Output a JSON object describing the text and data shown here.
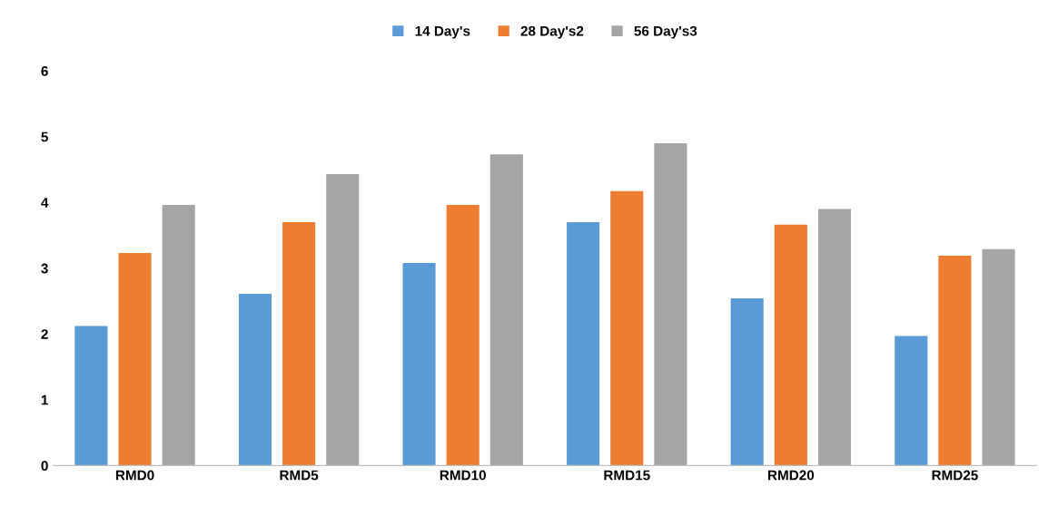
{
  "chart_data": {
    "type": "bar",
    "categories": [
      "RMD0",
      "RMD5",
      "RMD10",
      "RMD15",
      "RMD20",
      "RMD25"
    ],
    "series": [
      {
        "name": "14 Day's",
        "color": "#5b9bd5",
        "values": [
          2.12,
          2.61,
          3.08,
          3.7,
          2.54,
          1.97
        ]
      },
      {
        "name": "28 Day's2",
        "color": "#ed7d31",
        "values": [
          3.23,
          3.7,
          3.96,
          4.17,
          3.66,
          3.19
        ]
      },
      {
        "name": "56 Day's3",
        "color": "#a5a5a5",
        "values": [
          3.96,
          4.43,
          4.73,
          4.9,
          3.9,
          3.29
        ]
      }
    ],
    "ylim": [
      0,
      6
    ],
    "yticks": [
      0,
      1,
      2,
      3,
      4,
      5,
      6
    ],
    "grid": false,
    "legend": "top"
  }
}
